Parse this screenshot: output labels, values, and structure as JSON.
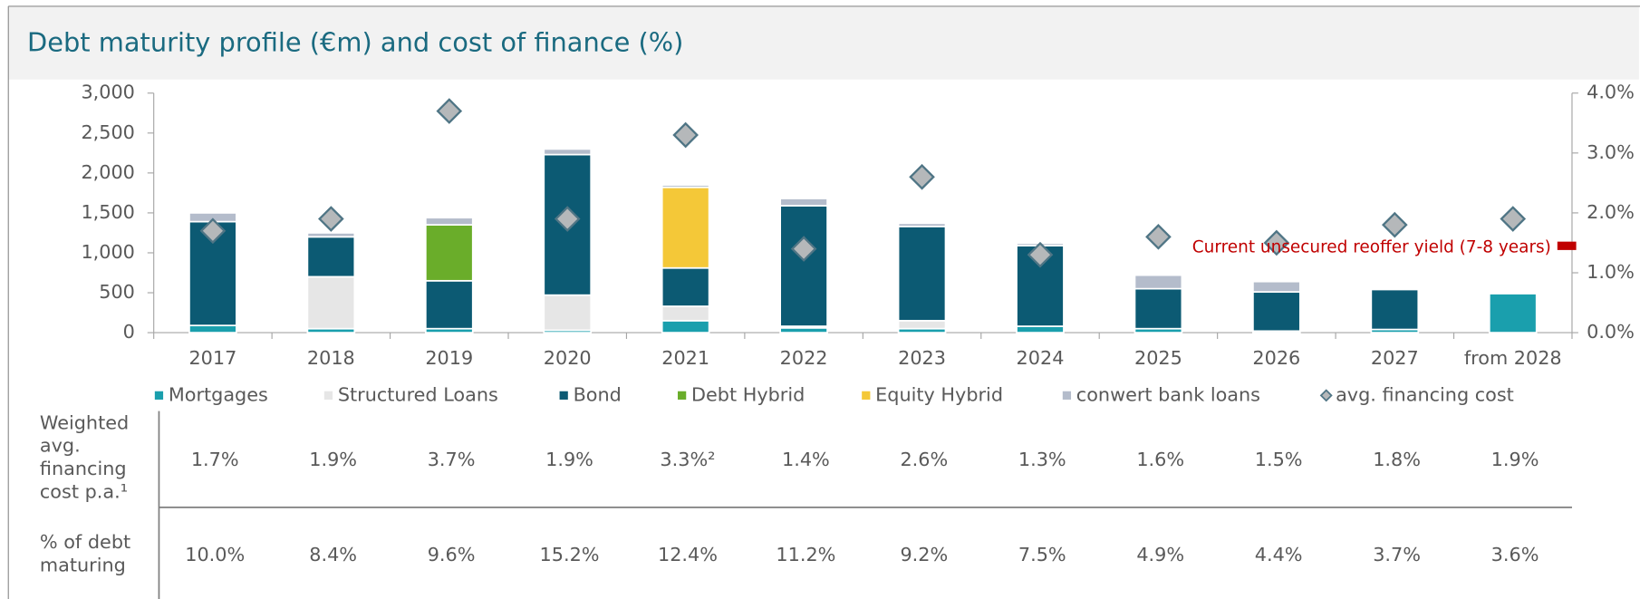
{
  "chart_data": {
    "type": "bar",
    "title": "Debt maturity profile (€m) and cost of finance (%)",
    "categories": [
      "2017",
      "2018",
      "2019",
      "2020",
      "2021",
      "2022",
      "2023",
      "2024",
      "2025",
      "2026",
      "2027",
      "from 2028"
    ],
    "series": [
      {
        "name": "Mortgages",
        "color": "#1a9fad",
        "values": [
          90,
          50,
          50,
          30,
          150,
          60,
          50,
          80,
          50,
          20,
          40,
          490
        ]
      },
      {
        "name": "Structured Loans",
        "color": "#e6e6e6",
        "values": [
          0,
          650,
          0,
          440,
          180,
          20,
          100,
          0,
          0,
          0,
          0,
          0
        ]
      },
      {
        "name": "Bond",
        "color": "#0c5a73",
        "values": [
          1300,
          500,
          600,
          1760,
          480,
          1510,
          1180,
          1010,
          500,
          490,
          500,
          0
        ]
      },
      {
        "name": "Debt Hybrid",
        "color": "#6aad2a",
        "values": [
          0,
          0,
          700,
          0,
          0,
          0,
          0,
          0,
          0,
          0,
          0,
          0
        ]
      },
      {
        "name": "Equity Hybrid",
        "color": "#f4c838",
        "values": [
          0,
          0,
          0,
          0,
          1010,
          0,
          0,
          0,
          0,
          0,
          0,
          0
        ]
      },
      {
        "name": "conwert bank loans",
        "color": "#b4bccb",
        "values": [
          110,
          50,
          90,
          70,
          30,
          90,
          40,
          30,
          170,
          130,
          0,
          20
        ]
      },
      {
        "name": "avg. financing cost",
        "color": "#b5b8ba",
        "axis": "y2",
        "marker": "diamond",
        "values": [
          1.7,
          1.9,
          3.7,
          1.9,
          3.3,
          1.4,
          2.6,
          1.3,
          1.6,
          1.5,
          1.8,
          1.9
        ]
      }
    ],
    "ylim": [
      0,
      3000
    ],
    "yticks": [
      0,
      500,
      {
        "value": 1000,
        "label": "1,000"
      },
      {
        "value": 1500,
        "label": "1,500"
      },
      {
        "value": 2000,
        "label": "2,000"
      },
      {
        "value": 2500,
        "label": "2,500"
      },
      {
        "value": 3000,
        "label": "3,000"
      }
    ],
    "y2lim": [
      0,
      4
    ],
    "y2ticks": [
      {
        "value": 0,
        "label": "0.0%"
      },
      {
        "value": 1,
        "label": "1.0%"
      },
      {
        "value": 2,
        "label": "2.0%"
      },
      {
        "value": 3,
        "label": "3.0%"
      },
      {
        "value": 4,
        "label": "4.0%"
      }
    ],
    "reference": {
      "label": "Current unsecured reoffer yield (7-8 years)",
      "value": 1.45,
      "axis": "y2",
      "color": "#c00000"
    },
    "table": {
      "rows": [
        {
          "label": "Weighted avg. financing cost p.a.¹",
          "cells": [
            "1.7%",
            "1.9%",
            "3.7%",
            "1.9%",
            "3.3%²",
            "1.4%",
            "2.6%",
            "1.3%",
            "1.6%",
            "1.5%",
            "1.8%",
            "1.9%"
          ]
        },
        {
          "label": "% of debt maturing",
          "cells": [
            "10.0%",
            "8.4%",
            "9.6%",
            "15.2%",
            "12.4%",
            "11.2%",
            "9.2%",
            "7.5%",
            "4.9%",
            "4.4%",
            "3.7%",
            "3.6%"
          ]
        }
      ]
    }
  }
}
